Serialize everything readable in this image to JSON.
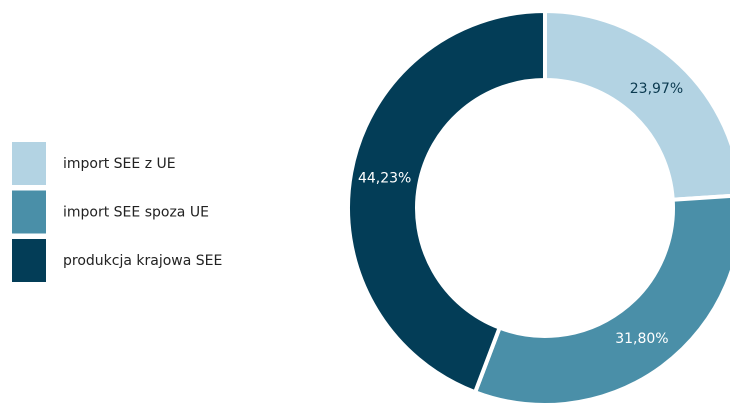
{
  "chart_data": {
    "type": "donut",
    "categories": [
      "import SEE z UE",
      "import SEE spoza UE",
      "produkcja krajowa SEE"
    ],
    "values": [
      23.97,
      31.8,
      44.23
    ],
    "value_labels": [
      "23,97%",
      "31,80%",
      "44,23%"
    ],
    "colors": [
      "#b3d3e3",
      "#4a8fa8",
      "#033d57"
    ],
    "legend": "left"
  }
}
